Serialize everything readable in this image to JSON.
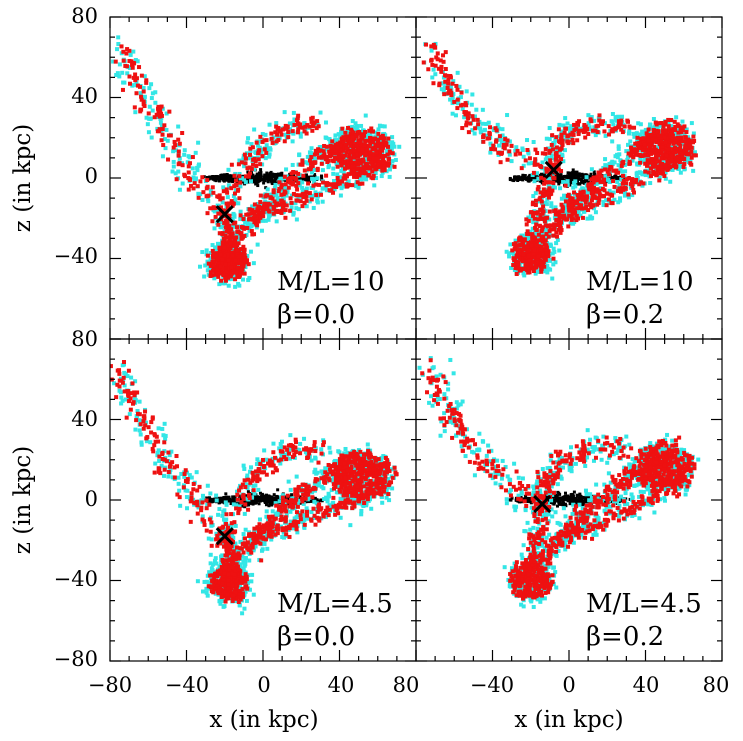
{
  "chart_data": {
    "type": "scatter",
    "layout": "2x2 panels",
    "xlabel": "x (in kpc)",
    "ylabel": "z (in kpc)",
    "xlim": [
      -80,
      80
    ],
    "ylim": [
      -80,
      80
    ],
    "x_tick_labels": [
      "−80",
      "−40",
      "0",
      "40",
      "80"
    ],
    "y_tick_labels": [
      "80",
      "40",
      "0",
      "−40",
      "−80"
    ],
    "colors": {
      "cyan": "#33e6e6",
      "red": "#ee1111",
      "black": "#000000",
      "frame": "#000000"
    },
    "series_legend": [
      "cyan particles",
      "red particles",
      "black disk particles",
      "X marker"
    ],
    "panels": [
      {
        "id": "top-left",
        "ml_label": "M/L=10",
        "beta_label": "β=0.0",
        "marker": [
          -20,
          -18
        ],
        "tail_end": [
          -74,
          66
        ],
        "upper_tail": [
          -6,
          28
        ],
        "loop_center": [
          52,
          12
        ],
        "lower_blob": [
          -18,
          -42
        ]
      },
      {
        "id": "top-right",
        "ml_label": "M/L=10",
        "beta_label": "β=0.2",
        "marker": [
          -8,
          4
        ],
        "tail_end": [
          -74,
          66
        ],
        "upper_tail": [
          -12,
          28
        ],
        "loop_center": [
          50,
          16
        ],
        "lower_blob": [
          -20,
          -38
        ]
      },
      {
        "id": "bottom-left",
        "ml_label": "M/L=4.5",
        "beta_label": "β=0.0",
        "marker": [
          -20,
          -18
        ],
        "tail_end": [
          -76,
          66
        ],
        "upper_tail": [
          -4,
          28
        ],
        "loop_center": [
          52,
          12
        ],
        "lower_blob": [
          -18,
          -42
        ]
      },
      {
        "id": "bottom-right",
        "ml_label": "M/L=4.5",
        "beta_label": "β=0.2",
        "marker": [
          -14,
          -2
        ],
        "tail_end": [
          -74,
          68
        ],
        "upper_tail": [
          -12,
          28
        ],
        "loop_center": [
          50,
          16
        ],
        "lower_blob": [
          -20,
          -40
        ]
      }
    ]
  }
}
